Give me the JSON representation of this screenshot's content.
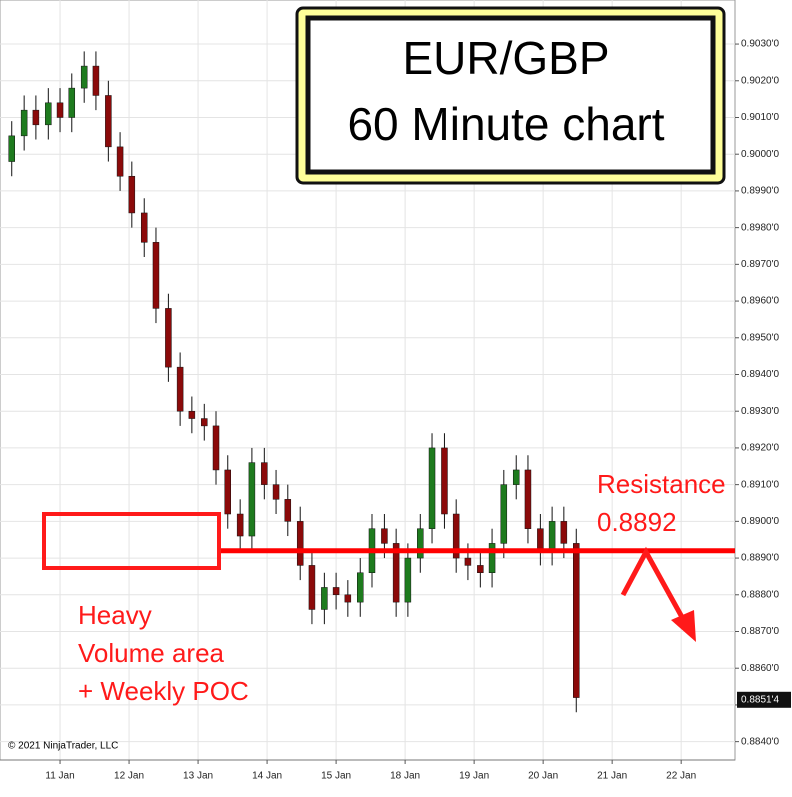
{
  "chart_data": {
    "type": "candlestick",
    "title": "EUR/GBP",
    "subtitle": "60 Minute chart",
    "copyright": "© 2021 NinjaTrader, LLC",
    "annotations": {
      "resistance_text": "Resistance",
      "heavy_lines": [
        "Heavy",
        "Volume area",
        "+ Weekly POC"
      ]
    },
    "resistance": 0.8892,
    "last_price": {
      "value": 0.88514,
      "label": "0.8851'4"
    },
    "up_color": "#1e7b1e",
    "down_color": "#8b0a0a",
    "wick_color": "#111111",
    "resistance_color": "#ff0000",
    "grid": true,
    "xlim": [
      -0.87,
      9.78
    ],
    "xticks": [
      {
        "value": 0,
        "label": "11 Jan"
      },
      {
        "value": 1,
        "label": "12 Jan"
      },
      {
        "value": 2,
        "label": "13 Jan"
      },
      {
        "value": 3,
        "label": "14 Jan"
      },
      {
        "value": 4,
        "label": "15 Jan"
      },
      {
        "value": 5,
        "label": "18 Jan"
      },
      {
        "value": 6,
        "label": "19 Jan"
      },
      {
        "value": 7,
        "label": "20 Jan"
      },
      {
        "value": 8,
        "label": "21 Jan"
      },
      {
        "value": 9,
        "label": "22 Jan"
      }
    ],
    "ylim": [
      0.8835,
      0.9042
    ],
    "yticks": [
      {
        "value": 0.884,
        "label": "0.8840'0"
      },
      {
        "value": 0.885,
        "label": "0.8850'0"
      },
      {
        "value": 0.886,
        "label": "0.8860'0"
      },
      {
        "value": 0.887,
        "label": "0.8870'0"
      },
      {
        "value": 0.888,
        "label": "0.8880'0"
      },
      {
        "value": 0.889,
        "label": "0.8890'0"
      },
      {
        "value": 0.89,
        "label": "0.8900'0"
      },
      {
        "value": 0.891,
        "label": "0.8910'0"
      },
      {
        "value": 0.892,
        "label": "0.8920'0"
      },
      {
        "value": 0.893,
        "label": "0.8930'0"
      },
      {
        "value": 0.894,
        "label": "0.8940'0"
      },
      {
        "value": 0.895,
        "label": "0.8950'0"
      },
      {
        "value": 0.896,
        "label": "0.8960'0"
      },
      {
        "value": 0.897,
        "label": "0.8970'0"
      },
      {
        "value": 0.898,
        "label": "0.8980'0"
      },
      {
        "value": 0.899,
        "label": "0.8990'0"
      },
      {
        "value": 0.9,
        "label": "0.9000'0"
      },
      {
        "value": 0.901,
        "label": "0.9010'0"
      },
      {
        "value": 0.902,
        "label": "0.9020'0"
      },
      {
        "value": 0.903,
        "label": "0.9030'0"
      }
    ],
    "x": [
      -0.7,
      -0.52,
      -0.35,
      -0.17,
      0,
      0.17,
      0.35,
      0.52,
      0.7,
      0.87,
      1.04,
      1.22,
      1.39,
      1.57,
      1.74,
      1.91,
      2.09,
      2.26,
      2.43,
      2.61,
      2.78,
      2.96,
      3.13,
      3.3,
      3.48,
      3.65,
      3.83,
      4.0,
      4.17,
      4.35,
      4.52,
      4.7,
      4.87,
      5.04,
      5.22,
      5.39,
      5.57,
      5.74,
      5.91,
      6.09,
      6.26,
      6.43,
      6.61,
      6.78,
      6.96,
      7.13,
      7.3,
      7.48
    ],
    "open": [
      0.8998,
      0.9005,
      0.9012,
      0.9008,
      0.9014,
      0.901,
      0.9018,
      0.9024,
      0.9016,
      0.9002,
      0.8994,
      0.8984,
      0.8976,
      0.8958,
      0.8942,
      0.893,
      0.8928,
      0.8926,
      0.8914,
      0.8902,
      0.8896,
      0.8916,
      0.891,
      0.8906,
      0.89,
      0.8888,
      0.8876,
      0.8882,
      0.888,
      0.8878,
      0.8886,
      0.8898,
      0.8894,
      0.8878,
      0.889,
      0.8898,
      0.892,
      0.8902,
      0.889,
      0.8888,
      0.8886,
      0.8894,
      0.891,
      0.8914,
      0.8898,
      0.8892,
      0.89,
      0.8894
    ],
    "high": [
      0.9009,
      0.9016,
      0.9016,
      0.9018,
      0.9018,
      0.9022,
      0.9028,
      0.9028,
      0.902,
      0.9006,
      0.8998,
      0.8988,
      0.898,
      0.8962,
      0.8946,
      0.8934,
      0.8932,
      0.893,
      0.8918,
      0.8906,
      0.892,
      0.892,
      0.8914,
      0.891,
      0.8904,
      0.8892,
      0.8886,
      0.8886,
      0.8884,
      0.889,
      0.8902,
      0.8902,
      0.8898,
      0.8894,
      0.8902,
      0.8924,
      0.8924,
      0.8906,
      0.8894,
      0.8892,
      0.8898,
      0.8914,
      0.8918,
      0.8918,
      0.8902,
      0.8904,
      0.8904,
      0.8898
    ],
    "low": [
      0.8994,
      0.9001,
      0.9004,
      0.9004,
      0.9006,
      0.9006,
      0.9014,
      0.9012,
      0.8998,
      0.899,
      0.898,
      0.8972,
      0.8954,
      0.8938,
      0.8926,
      0.8924,
      0.8922,
      0.891,
      0.8898,
      0.8892,
      0.8892,
      0.8906,
      0.8902,
      0.8896,
      0.8884,
      0.8872,
      0.8872,
      0.8876,
      0.8874,
      0.8874,
      0.8882,
      0.889,
      0.8874,
      0.8874,
      0.8886,
      0.8894,
      0.8898,
      0.8886,
      0.8884,
      0.8882,
      0.8882,
      0.889,
      0.8906,
      0.8894,
      0.8888,
      0.8888,
      0.889,
      0.8848
    ],
    "close": [
      0.9005,
      0.9012,
      0.9008,
      0.9014,
      0.901,
      0.9018,
      0.9024,
      0.9016,
      0.9002,
      0.8994,
      0.8984,
      0.8976,
      0.8958,
      0.8942,
      0.893,
      0.8928,
      0.8926,
      0.8914,
      0.8902,
      0.8896,
      0.8916,
      0.891,
      0.8906,
      0.89,
      0.8888,
      0.8876,
      0.8882,
      0.888,
      0.8878,
      0.8886,
      0.8898,
      0.8894,
      0.8878,
      0.889,
      0.8898,
      0.892,
      0.8902,
      0.889,
      0.8888,
      0.8886,
      0.8894,
      0.891,
      0.8914,
      0.8898,
      0.8892,
      0.89,
      0.8894,
      0.8852
    ]
  }
}
